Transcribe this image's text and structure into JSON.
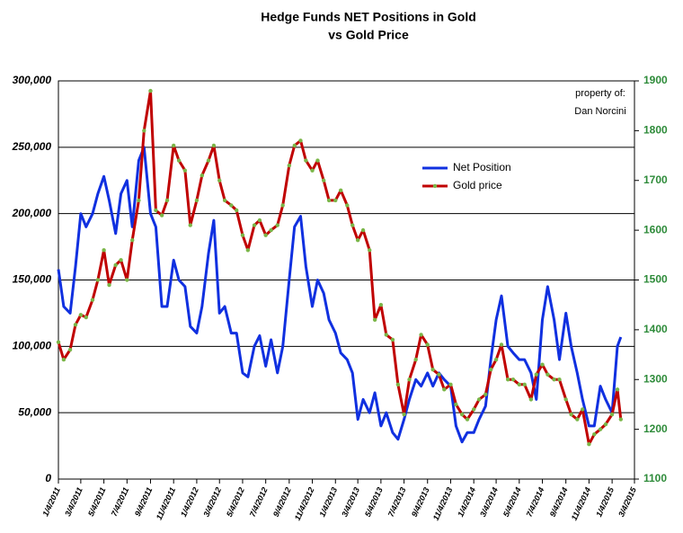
{
  "chart_data": {
    "type": "line",
    "title": "Hedge Funds NET Positions in Gold",
    "subtitle": "vs Gold Price",
    "annotations": [
      "property of:",
      "Dan Norcini"
    ],
    "legend": "center right",
    "grid": true,
    "x": [
      "1/4/2011",
      "1/18/2011",
      "2/4/2011",
      "2/18/2011",
      "3/4/2011",
      "3/18/2011",
      "4/4/2011",
      "4/18/2011",
      "5/4/2011",
      "5/18/2011",
      "6/4/2011",
      "6/18/2011",
      "7/4/2011",
      "7/18/2011",
      "8/4/2011",
      "8/18/2011",
      "9/4/2011",
      "9/18/2011",
      "10/4/2011",
      "10/18/2011",
      "11/4/2011",
      "11/18/2011",
      "12/4/2011",
      "12/18/2011",
      "1/4/2012",
      "1/18/2012",
      "2/4/2012",
      "2/18/2012",
      "3/4/2012",
      "3/18/2012",
      "4/4/2012",
      "4/18/2012",
      "5/4/2012",
      "5/18/2012",
      "6/4/2012",
      "6/18/2012",
      "7/4/2012",
      "7/18/2012",
      "8/4/2012",
      "8/18/2012",
      "9/4/2012",
      "9/18/2012",
      "10/4/2012",
      "10/18/2012",
      "11/4/2012",
      "11/18/2012",
      "12/4/2012",
      "12/18/2012",
      "1/4/2013",
      "1/18/2013",
      "2/4/2013",
      "2/18/2013",
      "3/4/2013",
      "3/18/2013",
      "4/4/2013",
      "4/18/2013",
      "5/4/2013",
      "5/18/2013",
      "6/4/2013",
      "6/18/2013",
      "7/4/2013",
      "7/18/2013",
      "8/4/2013",
      "8/18/2013",
      "9/4/2013",
      "9/18/2013",
      "10/4/2013",
      "10/18/2013",
      "11/4/2013",
      "11/18/2013",
      "12/4/2013",
      "12/18/2013",
      "1/4/2014",
      "1/18/2014",
      "2/4/2014",
      "2/18/2014",
      "3/4/2014",
      "3/18/2014",
      "4/4/2014",
      "4/18/2014",
      "5/4/2014",
      "5/18/2014",
      "6/4/2014",
      "6/18/2014",
      "7/4/2014",
      "7/18/2014",
      "8/4/2014",
      "8/18/2014",
      "9/4/2014",
      "9/18/2014",
      "10/4/2014",
      "10/18/2014",
      "11/4/2014",
      "11/18/2014",
      "12/4/2014",
      "12/18/2014",
      "1/4/2015",
      "1/18/2015",
      "1/27/2015"
    ],
    "xlim": [
      "1/4/2011",
      "3/4/2015"
    ],
    "xticks": [
      "1/4/2011",
      "3/4/2011",
      "5/4/2011",
      "7/4/2011",
      "9/4/2011",
      "11/4/2011",
      "1/4/2012",
      "3/4/2012",
      "5/4/2012",
      "7/4/2012",
      "9/4/2012",
      "11/4/2012",
      "1/4/2013",
      "3/4/2013",
      "5/4/2013",
      "7/4/2013",
      "9/4/2013",
      "11/4/2013",
      "1/4/2014",
      "3/4/2014",
      "5/4/2014",
      "7/4/2014",
      "9/4/2014",
      "11/4/2014",
      "1/4/2015",
      "3/4/2015"
    ],
    "ylim": [
      0,
      300000
    ],
    "yticks": [
      0,
      {
        "value": 50000,
        "label": "50,000"
      },
      {
        "value": 100000,
        "label": "100,000"
      },
      {
        "value": 150000,
        "label": "150,000"
      },
      {
        "value": 200000,
        "label": "200,000"
      },
      {
        "value": 250000,
        "label": "250,000"
      },
      {
        "value": 300000,
        "label": "300,000"
      }
    ],
    "y2lim": [
      1100,
      1900
    ],
    "y2ticks": [
      1100,
      1200,
      1300,
      1400,
      1500,
      1600,
      1700,
      1800,
      1900
    ],
    "series": [
      {
        "name": "Net Position",
        "color": "#1030e0",
        "values": [
          158000,
          130000,
          125000,
          160000,
          200000,
          190000,
          200000,
          215000,
          228000,
          210000,
          185000,
          215000,
          225000,
          190000,
          240000,
          250000,
          200000,
          190000,
          130000,
          130000,
          165000,
          150000,
          145000,
          115000,
          110000,
          130000,
          170000,
          195000,
          125000,
          130000,
          110000,
          110000,
          80000,
          77000,
          100000,
          108000,
          85000,
          105000,
          80000,
          100000,
          150000,
          190000,
          198000,
          160000,
          130000,
          150000,
          140000,
          120000,
          110000,
          95000,
          90000,
          80000,
          45000,
          60000,
          50000,
          65000,
          40000,
          50000,
          35000,
          30000,
          45000,
          60000,
          75000,
          70000,
          80000,
          70000,
          80000,
          75000,
          70000,
          40000,
          28000,
          35000,
          35000,
          45000,
          55000,
          90000,
          120000,
          138000,
          100000,
          95000,
          90000,
          90000,
          80000,
          60000,
          120000,
          145000,
          120000,
          90000,
          125000,
          100000,
          80000,
          60000,
          40000,
          40000,
          70000,
          60000,
          50000,
          100000,
          107000
        ]
      },
      {
        "name": "Gold price",
        "color": "#c00000",
        "marker_color": "#7ab648",
        "axis": "y2",
        "values": [
          1375,
          1340,
          1360,
          1410,
          1430,
          1425,
          1460,
          1500,
          1560,
          1490,
          1530,
          1540,
          1500,
          1580,
          1660,
          1800,
          1880,
          1640,
          1630,
          1660,
          1770,
          1740,
          1720,
          1610,
          1660,
          1710,
          1740,
          1770,
          1700,
          1660,
          1650,
          1640,
          1590,
          1560,
          1610,
          1620,
          1590,
          1600,
          1610,
          1650,
          1730,
          1770,
          1780,
          1740,
          1720,
          1740,
          1700,
          1660,
          1660,
          1680,
          1650,
          1610,
          1580,
          1600,
          1560,
          1420,
          1450,
          1390,
          1380,
          1290,
          1230,
          1300,
          1340,
          1390,
          1370,
          1320,
          1310,
          1280,
          1290,
          1250,
          1230,
          1220,
          1240,
          1260,
          1270,
          1320,
          1340,
          1370,
          1300,
          1300,
          1290,
          1290,
          1260,
          1310,
          1330,
          1310,
          1300,
          1300,
          1260,
          1230,
          1220,
          1240,
          1170,
          1190,
          1200,
          1210,
          1230,
          1280,
          1220
        ]
      }
    ]
  }
}
